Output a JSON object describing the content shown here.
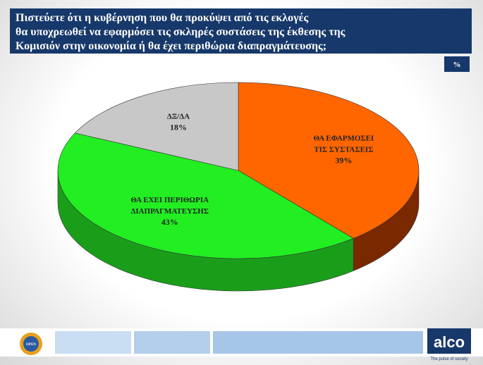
{
  "chart_data": {
    "type": "pie3d",
    "title": [
      "Πιστεύετε ότι η κυβέρνηση που θα προκύψει από τις εκλογές",
      "θα υποχρεωθεί να εφαρμόσει τις σκληρές συστάσεις της έκθεσης της",
      "Κομισιόν στην οικονομία ή θα έχει περιθώρια διαπραγμάτευσης;"
    ],
    "unit": "%",
    "categories": [
      [
        "ΘΑ ΕΦΑΡΜΟΣΕΙ",
        "ΤΙΣ ΣΥΣΤΑΣΕΙΣ"
      ],
      [
        "ΘΑ ΕΧΕΙ ΠΕΡΙΘΩΡΙΑ",
        "ΔΙΑΠΡΑΓΜΑΤΕΥΣΗΣ"
      ],
      [
        "ΔΞ/ΔΑ"
      ]
    ],
    "values": [
      39,
      43,
      18
    ],
    "value_labels": [
      "39%",
      "43%",
      "18%"
    ],
    "colors": [
      "#ff6600",
      "#22ee22",
      "#c8c8c8"
    ],
    "side_colors": [
      "#7a2800",
      "#1a9e1a",
      "#8a8a8a"
    ]
  },
  "footer": {
    "left_logo": "OPEN",
    "brand": "alco",
    "tagline": "The pulse of society"
  }
}
